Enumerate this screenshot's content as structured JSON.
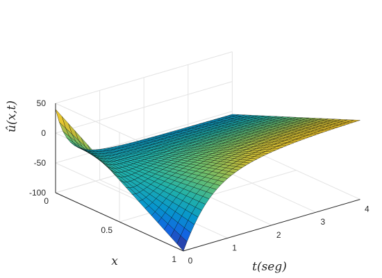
{
  "chart_data": {
    "type": "surface",
    "title": "",
    "xlabel": "t(seg)",
    "ylabel": "x",
    "zlabel": "û(x,t)",
    "xlim": [
      0,
      4
    ],
    "ylim": [
      0,
      1
    ],
    "zlim": [
      -100,
      50
    ],
    "x_ticks": [
      "0",
      "1",
      "2",
      "3",
      "4"
    ],
    "y_ticks": [
      "0",
      "0.5",
      "1"
    ],
    "z_ticks": [
      "50",
      "0",
      "-50",
      "-100"
    ],
    "grid": true,
    "colormap": "parula",
    "surface_samples": {
      "t": [
        0,
        0.5,
        1,
        2,
        4
      ],
      "x": [
        0,
        0.25,
        0.5,
        0.75,
        1
      ],
      "u": [
        [
          40,
          -15,
          -40,
          -35,
          -20
        ],
        [
          25,
          -10,
          -25,
          -24,
          -20
        ],
        [
          0,
          -8,
          -15,
          -18,
          -20
        ],
        [
          -35,
          -5,
          -8,
          -12,
          -20
        ],
        [
          -100,
          -3,
          -5,
          -10,
          -20
        ]
      ]
    },
    "colors": {
      "low": "#352a87",
      "mid": "#21b1a9",
      "high": "#f9fb0e",
      "gridline": "#e3e3e3",
      "axis": "#262626",
      "mesh": "#000000"
    }
  }
}
